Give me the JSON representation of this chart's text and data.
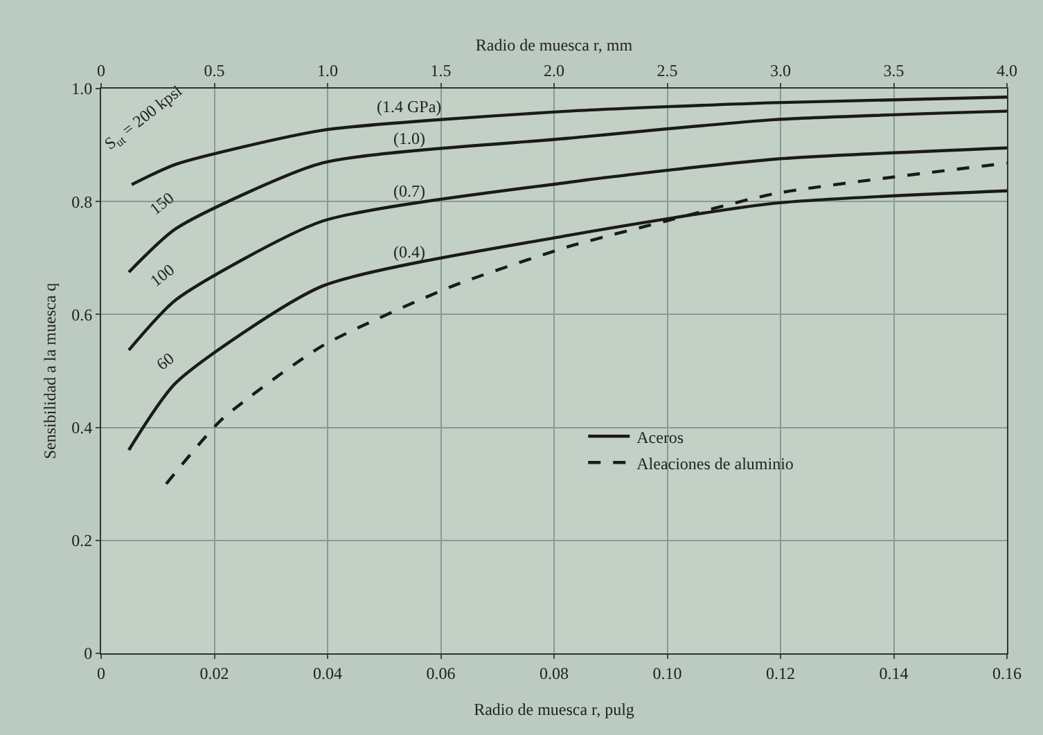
{
  "chart_data": {
    "type": "line",
    "xlabel": "Radio de muesca r, pulg",
    "x2label": "Radio de muesca r, mm",
    "ylabel": "Sensibilidad a la muesca q",
    "xlim": [
      0,
      0.16
    ],
    "xticks": [
      0,
      0.02,
      0.04,
      0.06,
      0.08,
      {
        "value": 0.1,
        "label": "0.10"
      },
      0.12,
      0.14,
      0.16
    ],
    "x2lim": [
      0,
      4.0
    ],
    "x2ticks": [
      0,
      0.5,
      {
        "value": 1,
        "label": "1.0"
      },
      1.5,
      {
        "value": 2,
        "label": "2.0"
      },
      2.5,
      {
        "value": 3,
        "label": "3.0"
      },
      3.5,
      {
        "value": 4,
        "label": "4.0"
      }
    ],
    "ylim": [
      0,
      1.0
    ],
    "yticks": [
      0,
      0.2,
      0.4,
      0.6,
      0.8,
      {
        "value": 1,
        "label": "1.0"
      }
    ],
    "grid": true,
    "legend": "bottom right",
    "marker": "none",
    "series": [
      {
        "name": "Aceros",
        "color": "#1a1a1a",
        "line_style": "solid",
        "x": [
          0.0054,
          0.0132,
          0.039,
          0.0825,
          0.119,
          0.16
        ],
        "values": [
          0.83,
          0.866,
          0.926,
          0.96,
          0.975,
          0.985
        ]
      },
      {
        "color": "#1a1a1a",
        "line_style": "solid",
        "x": [
          0.0049,
          0.0132,
          0.039,
          0.0825,
          0.119,
          0.16
        ],
        "values": [
          0.675,
          0.752,
          0.868,
          0.912,
          0.945,
          0.96
        ]
      },
      {
        "color": "#1a1a1a",
        "line_style": "solid",
        "x": [
          0.0049,
          0.0132,
          0.039,
          0.0825,
          0.119,
          0.16
        ],
        "values": [
          0.537,
          0.626,
          0.765,
          0.834,
          0.875,
          0.895
        ]
      },
      {
        "color": "#1a1a1a",
        "line_style": "solid",
        "x": [
          0.0049,
          0.0132,
          0.039,
          0.0825,
          0.119,
          0.16
        ],
        "values": [
          0.36,
          0.479,
          0.65,
          0.74,
          0.797,
          0.819
        ]
      },
      {
        "name": "Aleaciones de aluminio",
        "color": "#1a1a1a",
        "line_style": "dashed",
        "x": [
          0.0115,
          0.0213,
          0.039,
          0.062,
          0.0825,
          0.0996,
          0.119,
          0.16
        ],
        "values": [
          0.3,
          0.414,
          0.544,
          0.65,
          0.72,
          0.765,
          0.814,
          0.868
        ]
      }
    ],
    "annotations": [
      "S$_{ut}$ = 200 kpsi",
      "150",
      "100",
      "60",
      "(1.4 GPa)",
      "(1.0)",
      "(0.7)",
      "(0.4)"
    ]
  }
}
